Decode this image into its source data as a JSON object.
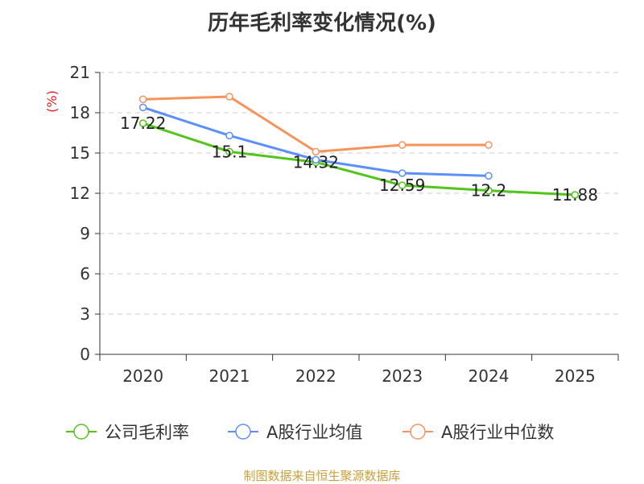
{
  "chart_data": {
    "type": "line",
    "title": "历年毛利率变化情况(%)",
    "ylabel": "(%)",
    "xlabel": "",
    "categories": [
      "2020",
      "2021",
      "2022",
      "2023",
      "2024",
      "2025"
    ],
    "ylim": [
      0,
      21
    ],
    "yticks": [
      0,
      3,
      6,
      9,
      12,
      15,
      18,
      21
    ],
    "grid": true,
    "legend_position": "bottom",
    "series": [
      {
        "name": "公司毛利率",
        "color": "#52c41a",
        "values": [
          17.22,
          15.1,
          14.32,
          12.59,
          12.2,
          11.88
        ],
        "show_labels": true
      },
      {
        "name": "A股行业均值",
        "color": "#5b8ff9",
        "values": [
          18.4,
          16.3,
          14.5,
          13.5,
          13.3,
          null
        ],
        "show_labels": false
      },
      {
        "name": "A股行业中位数",
        "color": "#f6935b",
        "values": [
          19.0,
          19.2,
          15.1,
          15.6,
          15.6,
          null
        ],
        "show_labels": false
      }
    ]
  },
  "source": "制图数据来自恒生聚源数据库"
}
